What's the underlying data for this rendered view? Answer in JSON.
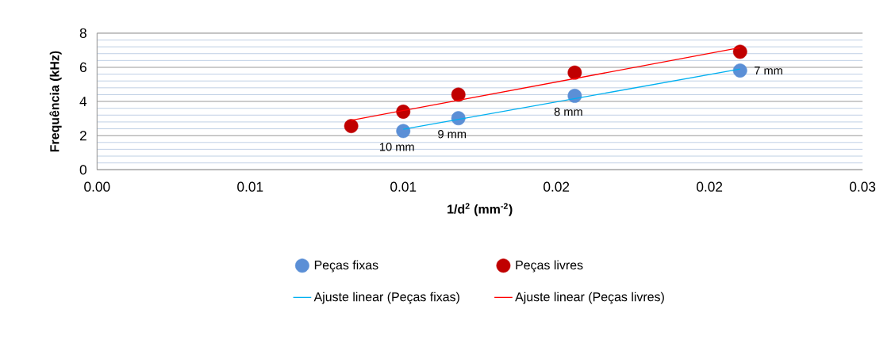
{
  "chart_data": {
    "type": "scatter",
    "xlabel": "1/d$^{2}$  (mm$^{-2}$)",
    "ylabel": "Frequência (kHz)",
    "series": [
      {
        "name": "Peças fixas",
        "color": "#5b8fd6",
        "x": [
          0.01,
          0.0118,
          0.0156,
          0.021
        ],
        "values": [
          2.27,
          3.02,
          4.33,
          5.81
        ]
      },
      {
        "name": "Peças livres",
        "color": "#c00000",
        "x": [
          0.0083,
          0.01,
          0.0118,
          0.0156,
          0.021
        ],
        "values": [
          2.56,
          3.4,
          4.4,
          5.69,
          6.91
        ]
      },
      {
        "name": "Ajuste linear (Peças fixas)",
        "type": "line",
        "marker": "none",
        "color": "#00b0f0",
        "x": [
          0.01,
          0.021
        ],
        "values": [
          2.37,
          5.9
        ]
      },
      {
        "name": "Ajuste linear (Peças livres)",
        "type": "line",
        "marker": "none",
        "color": "#ff0000",
        "x": [
          0.0083,
          0.021
        ],
        "values": [
          2.9,
          7.15
        ]
      }
    ],
    "annotations": [
      {
        "text": "10 mm",
        "x": 0.01,
        "y": 2.27
      },
      {
        "text": "9 mm",
        "x": 0.0118,
        "y": 3.02
      },
      {
        "text": "8 mm",
        "x": 0.0156,
        "y": 4.33
      },
      {
        "text": "7 mm",
        "x": 0.021,
        "y": 5.81
      }
    ],
    "xlim": [
      0,
      0.025
    ],
    "xticks": [
      {
        "value": 0,
        "label": "0.00"
      },
      {
        "value": 0.005,
        "label": "0.01"
      },
      {
        "value": 0.01,
        "label": "0.01"
      },
      {
        "value": 0.015,
        "label": "0.02"
      },
      {
        "value": 0.02,
        "label": "0.02"
      },
      {
        "value": 0.025,
        "label": "0.03"
      }
    ],
    "ylim": [
      0,
      8
    ],
    "yticks": [
      0,
      {
        "value": 0.4,
        "label": null
      },
      {
        "value": 0.8,
        "label": null
      },
      {
        "value": 1.2,
        "label": null
      },
      {
        "value": 1.6,
        "label": null
      },
      2,
      {
        "value": 2.4,
        "label": null
      },
      {
        "value": 2.8,
        "label": null
      },
      {
        "value": 3.2,
        "label": null
      },
      {
        "value": 3.6,
        "label": null
      },
      4,
      {
        "value": 4.4,
        "label": null
      },
      {
        "value": 4.8,
        "label": null
      },
      {
        "value": 5.2,
        "label": null
      },
      {
        "value": 5.6,
        "label": null
      },
      6,
      {
        "value": 6.4,
        "label": null
      },
      {
        "value": 6.8,
        "label": null
      },
      {
        "value": 7.2,
        "label": null
      },
      {
        "value": 7.6,
        "label": null
      },
      8
    ],
    "grid": "y",
    "marker": "circle",
    "line_style": "solid",
    "legend": "bottom"
  }
}
